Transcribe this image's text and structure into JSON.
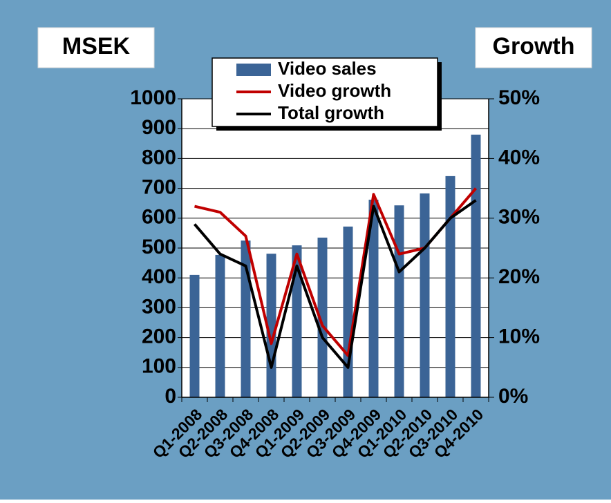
{
  "chart_data": {
    "type": "bar-line",
    "y_axis_label": "MSEK",
    "y2_axis_label": "Growth",
    "categories": [
      "Q1-2008",
      "Q2-2008",
      "Q3-2008",
      "Q4-2008",
      "Q1-2009",
      "Q2-2009",
      "Q3-2009",
      "Q4-2009",
      "Q1-2010",
      "Q2-2010",
      "Q3-2010",
      "Q4-2010"
    ],
    "series": [
      {
        "name": "Video sales",
        "type": "bar",
        "color": "#3b6496",
        "values": [
          410,
          477,
          525,
          481,
          509,
          535,
          572,
          662,
          643,
          683,
          741,
          880
        ]
      },
      {
        "name": "Video growth",
        "type": "line",
        "axis": "y2",
        "color": "#c00000",
        "values": [
          32,
          31,
          27,
          9,
          24,
          12,
          7,
          34,
          24,
          25,
          30,
          35
        ]
      },
      {
        "name": "Total growth",
        "type": "line",
        "axis": "y2",
        "color": "#000000",
        "values": [
          29,
          24,
          22,
          5,
          22,
          10,
          5,
          32,
          21,
          25,
          30,
          33
        ]
      }
    ],
    "ylim": [
      0,
      1000
    ],
    "yticks": [
      0,
      100,
      200,
      300,
      400,
      500,
      600,
      700,
      800,
      900,
      1000
    ],
    "y2lim": [
      0,
      50
    ],
    "y2ticks": [
      {
        "value": 0,
        "label": "0%"
      },
      {
        "value": 10,
        "label": "10%"
      },
      {
        "value": 20,
        "label": "20%"
      },
      {
        "value": 30,
        "label": "30%"
      },
      {
        "value": 40,
        "label": "40%"
      },
      {
        "value": 50,
        "label": "50%"
      }
    ],
    "grid": true,
    "legend": "top"
  }
}
